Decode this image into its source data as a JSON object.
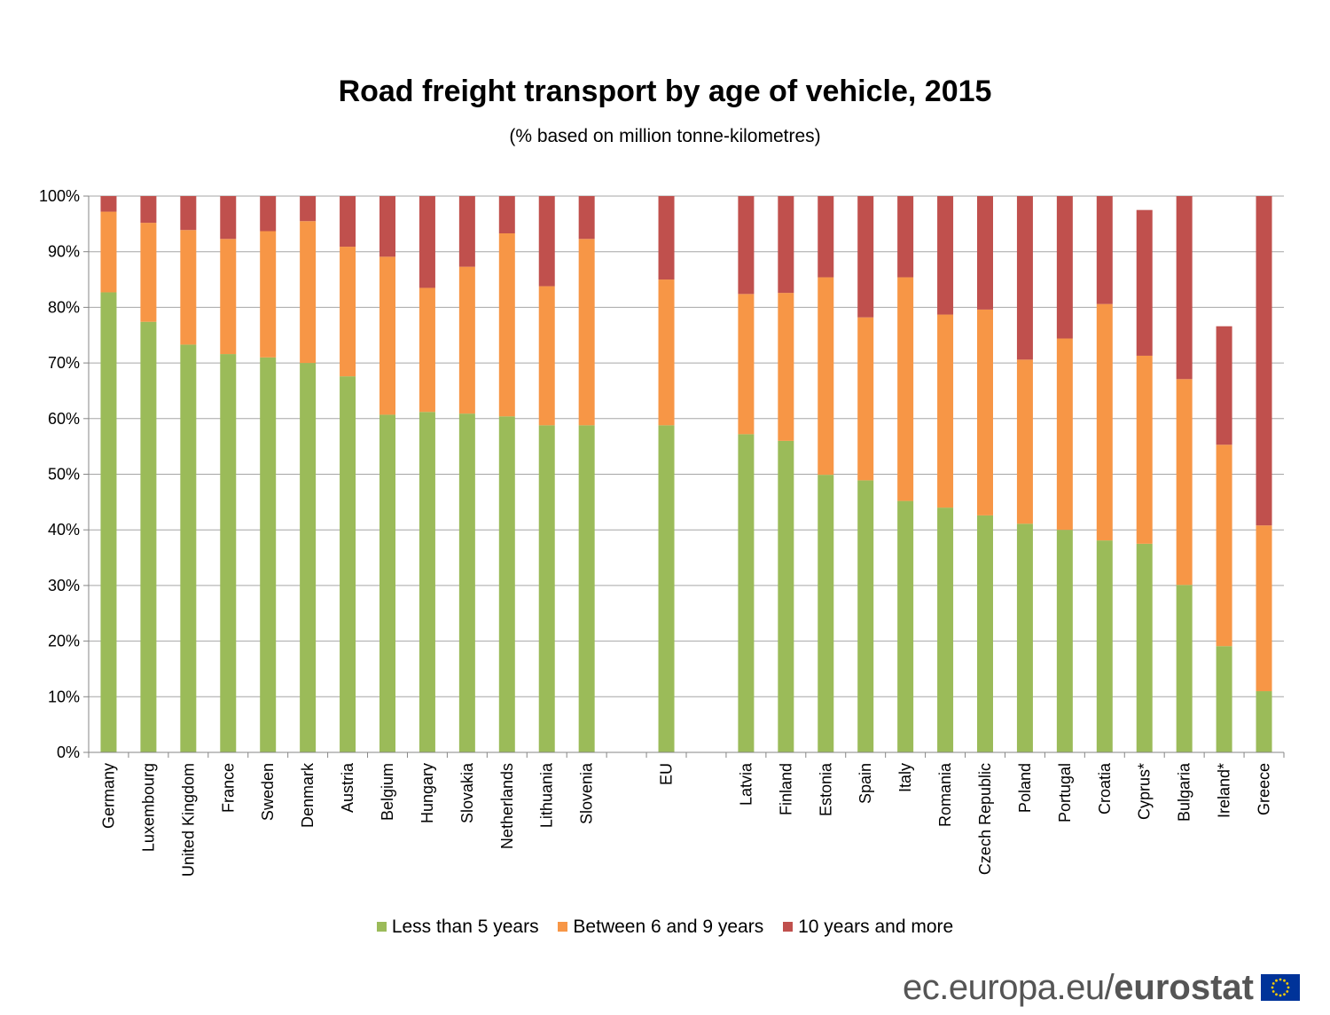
{
  "colors": {
    "less_than_5": "#9bbb59",
    "between_6_9": "#f79646",
    "ten_plus": "#c0504d",
    "eu_blue": "#003399",
    "eu_star": "#ffcc00"
  },
  "footer": {
    "site": "ec.europa.eu/",
    "brand": "eurostat"
  },
  "chart_data": {
    "type": "bar",
    "stacked": true,
    "title": "Road freight transport by age of vehicle, 2015",
    "subtitle": "(% based on million tonne-kilometres)",
    "xlabel": "",
    "ylabel": "",
    "ylim": [
      0,
      100
    ],
    "yticks": [
      "0%",
      "10%",
      "20%",
      "30%",
      "40%",
      "50%",
      "60%",
      "70%",
      "80%",
      "90%",
      "100%"
    ],
    "grid": true,
    "legend_position": "bottom",
    "categories": [
      "Germany",
      "Luxembourg",
      "United Kingdom",
      "France",
      "Sweden",
      "Denmark",
      "Austria",
      "Belgium",
      "Hungary",
      "Slovakia",
      "Netherlands",
      "Lithuania",
      "Slovenia",
      "",
      "EU",
      "",
      "Latvia",
      "Finland",
      "Estonia",
      "Spain",
      "Italy",
      "Romania",
      "Czech Republic",
      "Poland",
      "Portugal",
      "Croatia",
      "Cyprus*",
      "Bulgaria",
      "Ireland*",
      "Greece"
    ],
    "series": [
      {
        "name": "Less than 5 years",
        "values": [
          82.7,
          77.4,
          73.3,
          71.6,
          71.0,
          70.0,
          67.6,
          60.7,
          61.2,
          60.9,
          60.4,
          58.8,
          58.8,
          null,
          58.8,
          null,
          57.2,
          56.0,
          49.9,
          48.9,
          45.2,
          44.0,
          42.6,
          41.1,
          40.0,
          38.1,
          37.5,
          30.1,
          19.1,
          11.0
        ]
      },
      {
        "name": "Between 6 and 9 years",
        "values": [
          14.5,
          17.8,
          20.6,
          20.7,
          22.7,
          25.5,
          23.3,
          28.4,
          22.3,
          26.4,
          32.9,
          25.0,
          33.5,
          null,
          26.2,
          null,
          25.2,
          26.6,
          35.5,
          29.3,
          40.2,
          34.7,
          37.0,
          29.5,
          34.4,
          42.5,
          33.8,
          37.0,
          36.2,
          29.8
        ]
      },
      {
        "name": "10 years and more",
        "values": [
          2.8,
          4.8,
          6.1,
          7.7,
          6.3,
          4.5,
          9.1,
          10.9,
          16.5,
          12.7,
          6.7,
          16.2,
          7.7,
          null,
          15.0,
          null,
          17.6,
          17.4,
          14.6,
          21.8,
          14.6,
          21.3,
          20.4,
          29.4,
          25.6,
          19.4,
          26.2,
          32.9,
          21.3,
          59.2
        ]
      }
    ]
  }
}
